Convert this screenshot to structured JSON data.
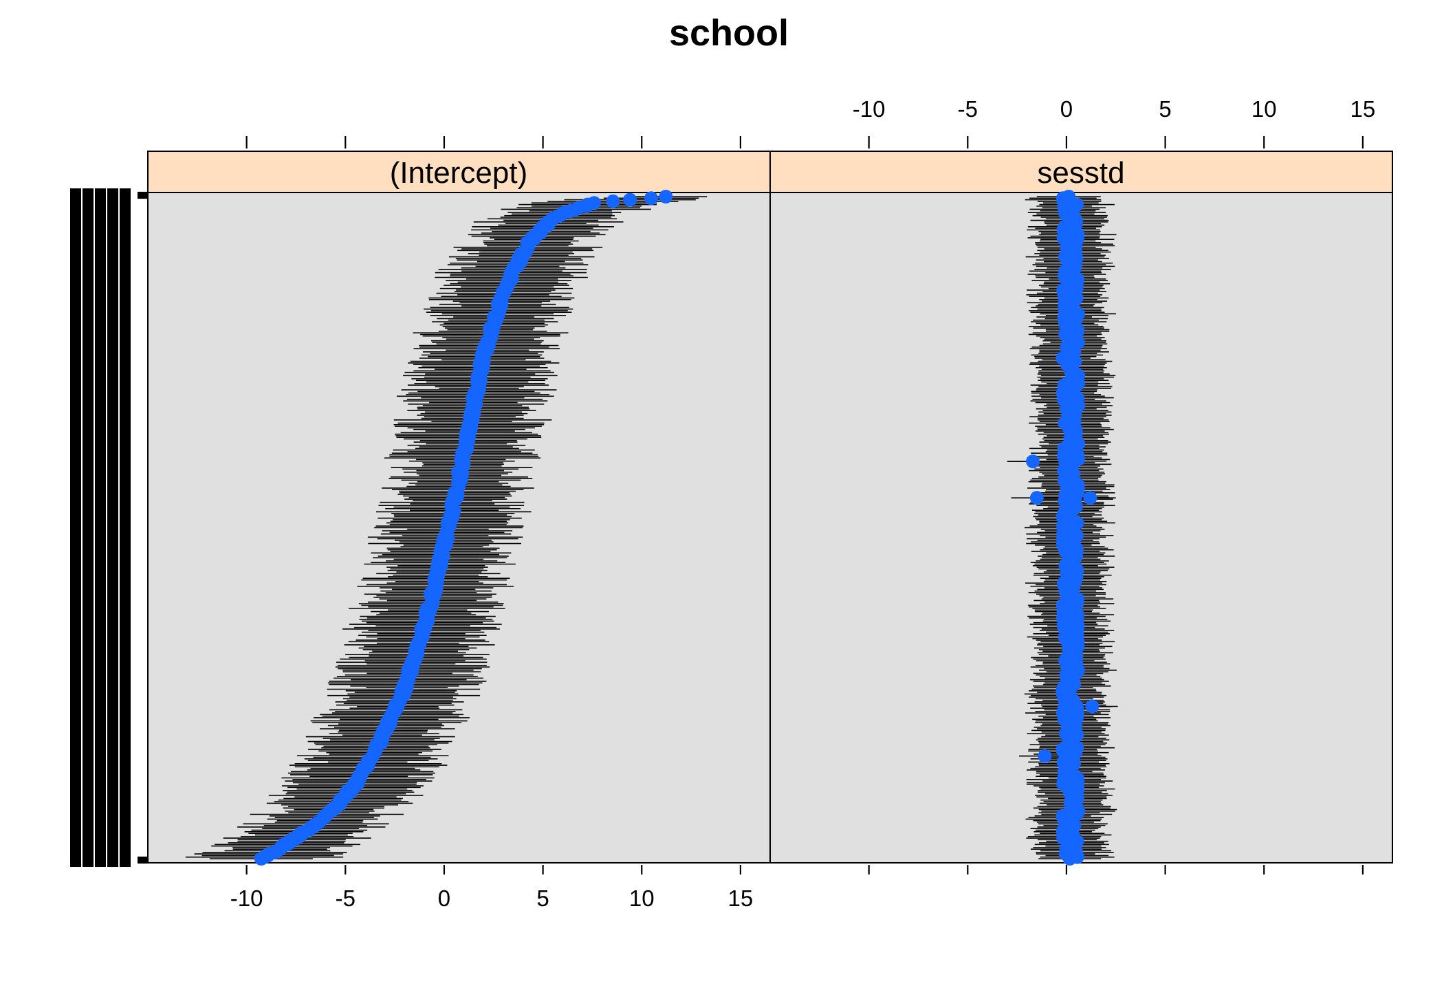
{
  "chart_data": {
    "type": "dotplot",
    "title": "school",
    "panels": [
      {
        "name": "(Intercept)",
        "xlim": [
          -15,
          16.5
        ],
        "ticks": [
          -10,
          -5,
          0,
          5,
          10,
          15
        ],
        "tick_labels": [
          "-10",
          "-5",
          "0",
          "5",
          "10",
          "15"
        ],
        "axis_labels_at": "bottom",
        "estimate_profile": [
          [
            0.0,
            -9.3
          ],
          [
            0.01,
            -8.6
          ],
          [
            0.03,
            -7.6
          ],
          [
            0.05,
            -6.6
          ],
          [
            0.08,
            -5.4
          ],
          [
            0.12,
            -4.3
          ],
          [
            0.18,
            -3.2
          ],
          [
            0.25,
            -2.1
          ],
          [
            0.33,
            -1.2
          ],
          [
            0.42,
            -0.4
          ],
          [
            0.5,
            0.2
          ],
          [
            0.58,
            0.8
          ],
          [
            0.67,
            1.4
          ],
          [
            0.75,
            1.9
          ],
          [
            0.82,
            2.6
          ],
          [
            0.88,
            3.4
          ],
          [
            0.93,
            4.3
          ],
          [
            0.97,
            5.6
          ],
          [
            0.99,
            7.5
          ],
          [
            1.0,
            11.3
          ]
        ],
        "interval_half_width_range": [
          2.0,
          4.0
        ]
      },
      {
        "name": "sesstd",
        "xlim": [
          -15,
          16.5
        ],
        "ticks": [
          -10,
          -5,
          0,
          5,
          10,
          15
        ],
        "tick_labels": [
          "-10",
          "-5",
          "0",
          "5",
          "10",
          "15"
        ],
        "axis_labels_at": "top",
        "estimate_center": 0.2,
        "estimate_spread": 0.4,
        "interval_half_width_range": [
          1.4,
          2.0
        ],
        "notable_points": [
          {
            "q": 0.155,
            "est": -1.1
          },
          {
            "q": 0.23,
            "est": 1.3
          },
          {
            "q": 0.545,
            "est": -1.5
          },
          {
            "q": 0.545,
            "est": 1.2
          },
          {
            "q": 0.6,
            "est": -1.7
          }
        ]
      }
    ],
    "n_groups": 419,
    "y_axis_label_text": "school id labels (overplotted)",
    "grid": false,
    "legend": "none",
    "colors": {
      "point": "#1565ff",
      "strip": "#ffdfbf",
      "panel": "#e0e0e0",
      "interval": "#000000"
    }
  }
}
